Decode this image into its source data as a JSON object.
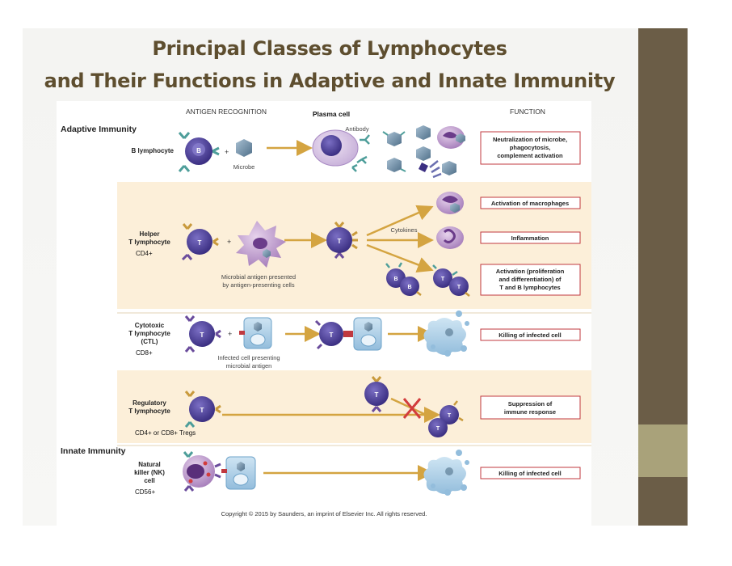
{
  "slide": {
    "title_line1": "Principal Classes of Lymphocytes",
    "title_line2": "and Their Functions in Adaptive and Innate Immunity"
  },
  "headers": {
    "antigen_recognition": "ANTIGEN RECOGNITION",
    "plasma_cell": "Plasma cell",
    "function": "FUNCTION"
  },
  "sections": {
    "adaptive": "Adaptive  Immunity",
    "innate": "Innate Immunity"
  },
  "rows": {
    "b": {
      "label": "B lymphocyte",
      "plus": "+",
      "microbe": "Microbe",
      "antibody": "Antibody",
      "cell_letter": "B",
      "function_lines": [
        "Neutralization of microbe,",
        "phagocytosis,",
        "complement activation"
      ]
    },
    "helper": {
      "label_lines": [
        "Helper",
        "T lymphocyte"
      ],
      "marker": "CD4+",
      "plus": "+",
      "cytokines": "Cytokines",
      "apc_lines": [
        "Microbial antigen presented",
        "by antigen-presenting cells"
      ],
      "cell_letter": "T",
      "b_letter": "B",
      "functions": {
        "f1": "Activation of macrophages",
        "f2": "Inflammation",
        "f3_lines": [
          "Activation (proliferation",
          "and differentiation) of",
          "T and B lymphocytes"
        ]
      }
    },
    "ctl": {
      "label_lines": [
        "Cytotoxic",
        "T lymphocyte",
        "(CTL)"
      ],
      "marker": "CD8+",
      "plus": "+",
      "cell_letter": "T",
      "infected_lines": [
        "Infected cell presenting",
        "microbial antigen"
      ],
      "function": "Killing of infected cell"
    },
    "treg": {
      "label_lines": [
        "Regulatory",
        "T lymphocyte"
      ],
      "marker": "CD4+ or CD8+ Tregs",
      "cell_letter": "T",
      "function_lines": [
        "Suppression of",
        "immune response"
      ]
    },
    "nk": {
      "label_lines": [
        "Natural",
        "killer (NK)",
        "cell"
      ],
      "marker": "CD56+",
      "function": "Killing of infected cell"
    }
  },
  "copyright": "Copyright © 2015 by Saunders, an imprint of Elsevier Inc. All rights reserved.",
  "colors": {
    "title": "#5e4e2f",
    "band_dark": "#6b5d47",
    "band_light": "#a9a27a",
    "panel_tint": "#fcefd9",
    "arrow": "#d4a441",
    "box_border": "#c0393f",
    "lymphocyte": "#4b3f97",
    "receptor_teal": "#4e9e9a",
    "receptor_purple": "#6a4c9c",
    "receptor_gold": "#c99a3c",
    "macrophage": "#b992c9",
    "infected_cell": "#a9cde6",
    "microbe": "#6d8fa8"
  }
}
